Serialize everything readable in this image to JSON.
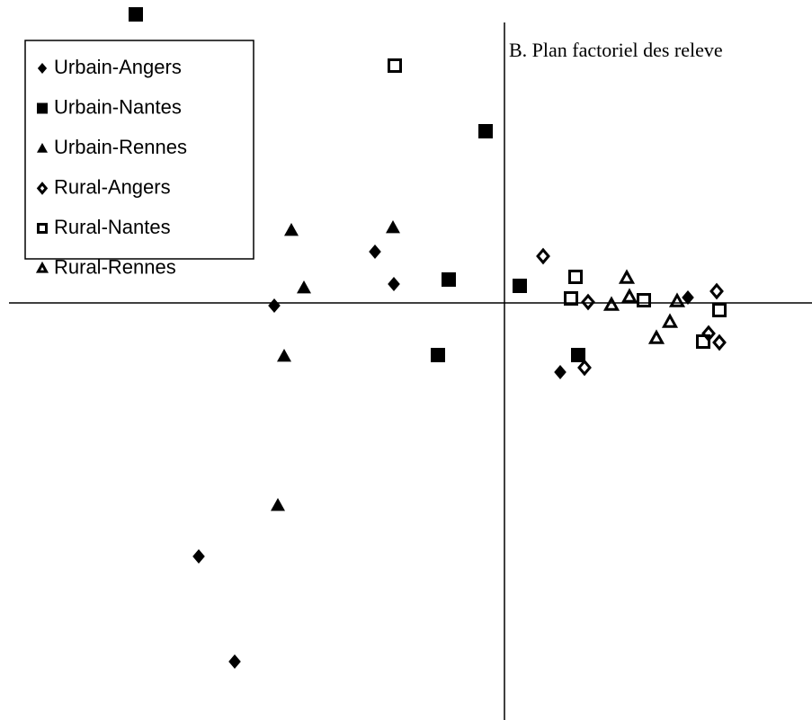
{
  "chart_data": {
    "type": "scatter",
    "title": "B. Plan factoriel des releve",
    "xlim": [
      -5.61,
      3.42
    ],
    "ylim": [
      -4.64,
      3.37
    ],
    "series": [
      {
        "name": "Urbain-Angers",
        "marker": "diamond",
        "filled": true,
        "color": "#000000",
        "x": [
          -1.44,
          -1.23,
          -2.56,
          -3.4,
          -3.0,
          0.62,
          2.04
        ],
        "values": [
          0.57,
          0.21,
          -0.03,
          -2.82,
          -3.99,
          -0.77,
          0.06
        ]
      },
      {
        "name": "Urbain-Nantes",
        "marker": "square",
        "filled": true,
        "color": "#000000",
        "x": [
          -4.1,
          -0.21,
          -0.62,
          0.17,
          -0.74,
          0.82
        ],
        "values": [
          3.21,
          1.91,
          0.26,
          0.19,
          -0.58,
          -0.58
        ]
      },
      {
        "name": "Urbain-Rennes",
        "marker": "triangle",
        "filled": true,
        "color": "#000000",
        "x": [
          -2.37,
          -1.24,
          -2.23,
          -2.45,
          -2.52
        ],
        "values": [
          0.81,
          0.84,
          0.17,
          -0.59,
          -2.25
        ]
      },
      {
        "name": "Rural-Angers",
        "marker": "diamond",
        "filled": false,
        "color": "#000000",
        "x": [
          0.43,
          0.93,
          0.89,
          2.36,
          2.27,
          2.39
        ],
        "values": [
          0.52,
          0.01,
          -0.72,
          0.13,
          -0.34,
          -0.44
        ]
      },
      {
        "name": "Rural-Nantes",
        "marker": "square",
        "filled": false,
        "color": "#000000",
        "x": [
          -1.22,
          0.79,
          0.74,
          1.55,
          2.39,
          2.21
        ],
        "values": [
          2.64,
          0.29,
          0.05,
          0.03,
          -0.08,
          -0.43
        ]
      },
      {
        "name": "Rural-Rennes",
        "marker": "triangle",
        "filled": false,
        "color": "#000000",
        "x": [
          1.36,
          1.39,
          1.19,
          1.92,
          1.84,
          1.69
        ],
        "values": [
          0.28,
          0.07,
          -0.02,
          0.02,
          -0.21,
          -0.39
        ]
      }
    ]
  }
}
